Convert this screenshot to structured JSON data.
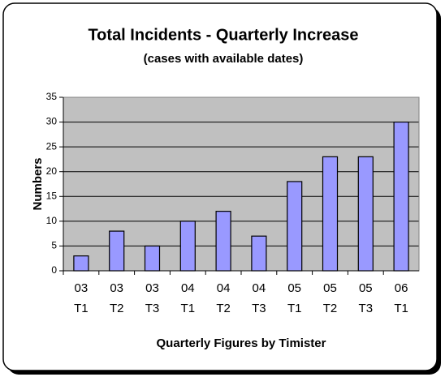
{
  "chart_data": {
    "type": "bar",
    "title": "Total Incidents - Quarterly Increase",
    "subtitle": "(cases with available dates)",
    "y_label": "Numbers",
    "x_label": "Quarterly Figures by Timister",
    "categories": [
      [
        "03",
        "T1"
      ],
      [
        "03",
        "T2"
      ],
      [
        "03",
        "T3"
      ],
      [
        "04",
        "T1"
      ],
      [
        "04",
        "T2"
      ],
      [
        "04",
        "T3"
      ],
      [
        "05",
        "T1"
      ],
      [
        "05",
        "T2"
      ],
      [
        "05",
        "T3"
      ],
      [
        "06",
        "T1"
      ]
    ],
    "values": [
      3,
      8,
      5,
      10,
      12,
      7,
      18,
      23,
      23,
      30
    ],
    "color": "#9999ff",
    "ylim": [
      0,
      35
    ],
    "yticks": [
      0,
      5,
      10,
      15,
      20,
      25,
      30,
      35
    ],
    "grid": true
  }
}
